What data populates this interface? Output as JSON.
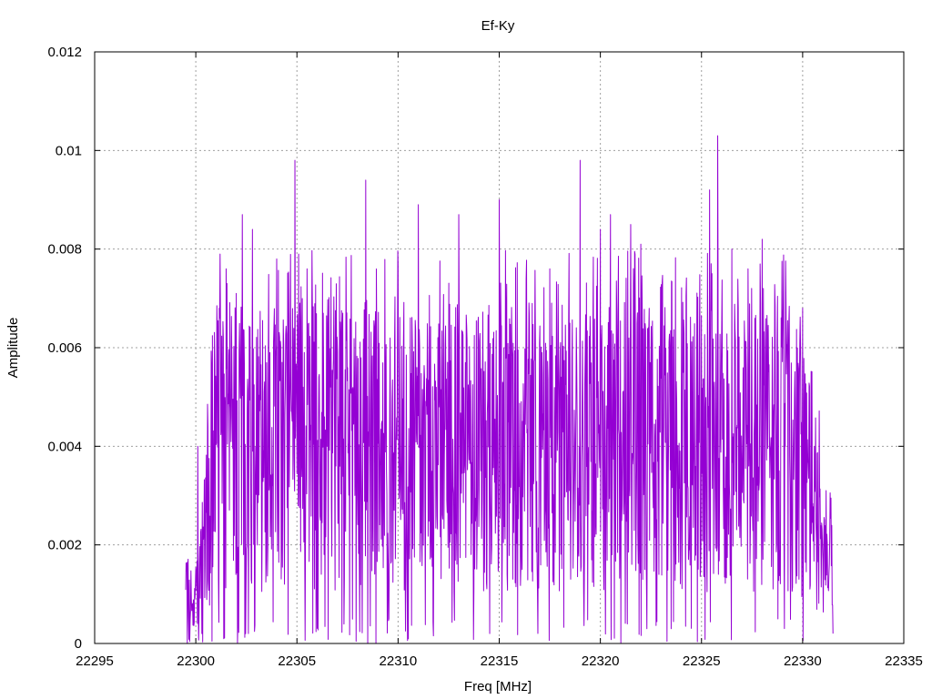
{
  "chart_data": {
    "type": "line",
    "title": "Ef-Ky",
    "xlabel": "Freq [MHz]",
    "ylabel": "Amplitude",
    "xlim": [
      22295,
      22335
    ],
    "ylim": [
      0,
      0.012
    ],
    "x_ticks": [
      "22295",
      "22300",
      "22305",
      "22310",
      "22315",
      "22320",
      "22325",
      "22330",
      "22335"
    ],
    "y_ticks": [
      "0",
      "0.002",
      "0.004",
      "0.006",
      "0.008",
      "0.01",
      "0.012"
    ],
    "grid": true,
    "series": [
      {
        "color": "#9400d3",
        "x_start": 22299.5,
        "x_end": 22331.5,
        "num_points": 1600,
        "peak_markers": [
          {
            "x": 22299.6,
            "y": 0.0015
          },
          {
            "x": 22300.1,
            "y": 0.004
          },
          {
            "x": 22300.6,
            "y": 0.0044
          },
          {
            "x": 22301.2,
            "y": 0.0079
          },
          {
            "x": 22301.5,
            "y": 0.0076
          },
          {
            "x": 22302.0,
            "y": 0.0071
          },
          {
            "x": 22302.3,
            "y": 0.0087
          },
          {
            "x": 22302.6,
            "y": 0.009
          },
          {
            "x": 22302.8,
            "y": 0.0084
          },
          {
            "x": 22304.0,
            "y": 0.0078
          },
          {
            "x": 22304.9,
            "y": 0.0098
          },
          {
            "x": 22305.5,
            "y": 0.0076
          },
          {
            "x": 22306.3,
            "y": 0.0067
          },
          {
            "x": 22308.4,
            "y": 0.0094
          },
          {
            "x": 22310.0,
            "y": 0.0077
          },
          {
            "x": 22311.0,
            "y": 0.0089
          },
          {
            "x": 22313.0,
            "y": 0.0087
          },
          {
            "x": 22315.0,
            "y": 0.009
          },
          {
            "x": 22317.5,
            "y": 0.0076
          },
          {
            "x": 22319.0,
            "y": 0.0098
          },
          {
            "x": 22320.0,
            "y": 0.0084
          },
          {
            "x": 22320.5,
            "y": 0.0087
          },
          {
            "x": 22321.5,
            "y": 0.0085
          },
          {
            "x": 22322.0,
            "y": 0.0081
          },
          {
            "x": 22325.4,
            "y": 0.0092
          },
          {
            "x": 22325.8,
            "y": 0.0103
          },
          {
            "x": 22326.5,
            "y": 0.008
          },
          {
            "x": 22327.3,
            "y": 0.0076
          },
          {
            "x": 22328.0,
            "y": 0.0082
          },
          {
            "x": 22330.0,
            "y": 0.0068
          },
          {
            "x": 22331.3,
            "y": 0.0014
          }
        ],
        "trough_markers": [
          {
            "x": 22300.3,
            "y": 0.0002
          },
          {
            "x": 22302.6,
            "y": 0.0002
          },
          {
            "x": 22308.5,
            "y": 0.0
          },
          {
            "x": 22322.3,
            "y": 0.0003
          },
          {
            "x": 22323.5,
            "y": 0.0003
          },
          {
            "x": 22331.5,
            "y": 0.0002
          }
        ]
      }
    ]
  }
}
